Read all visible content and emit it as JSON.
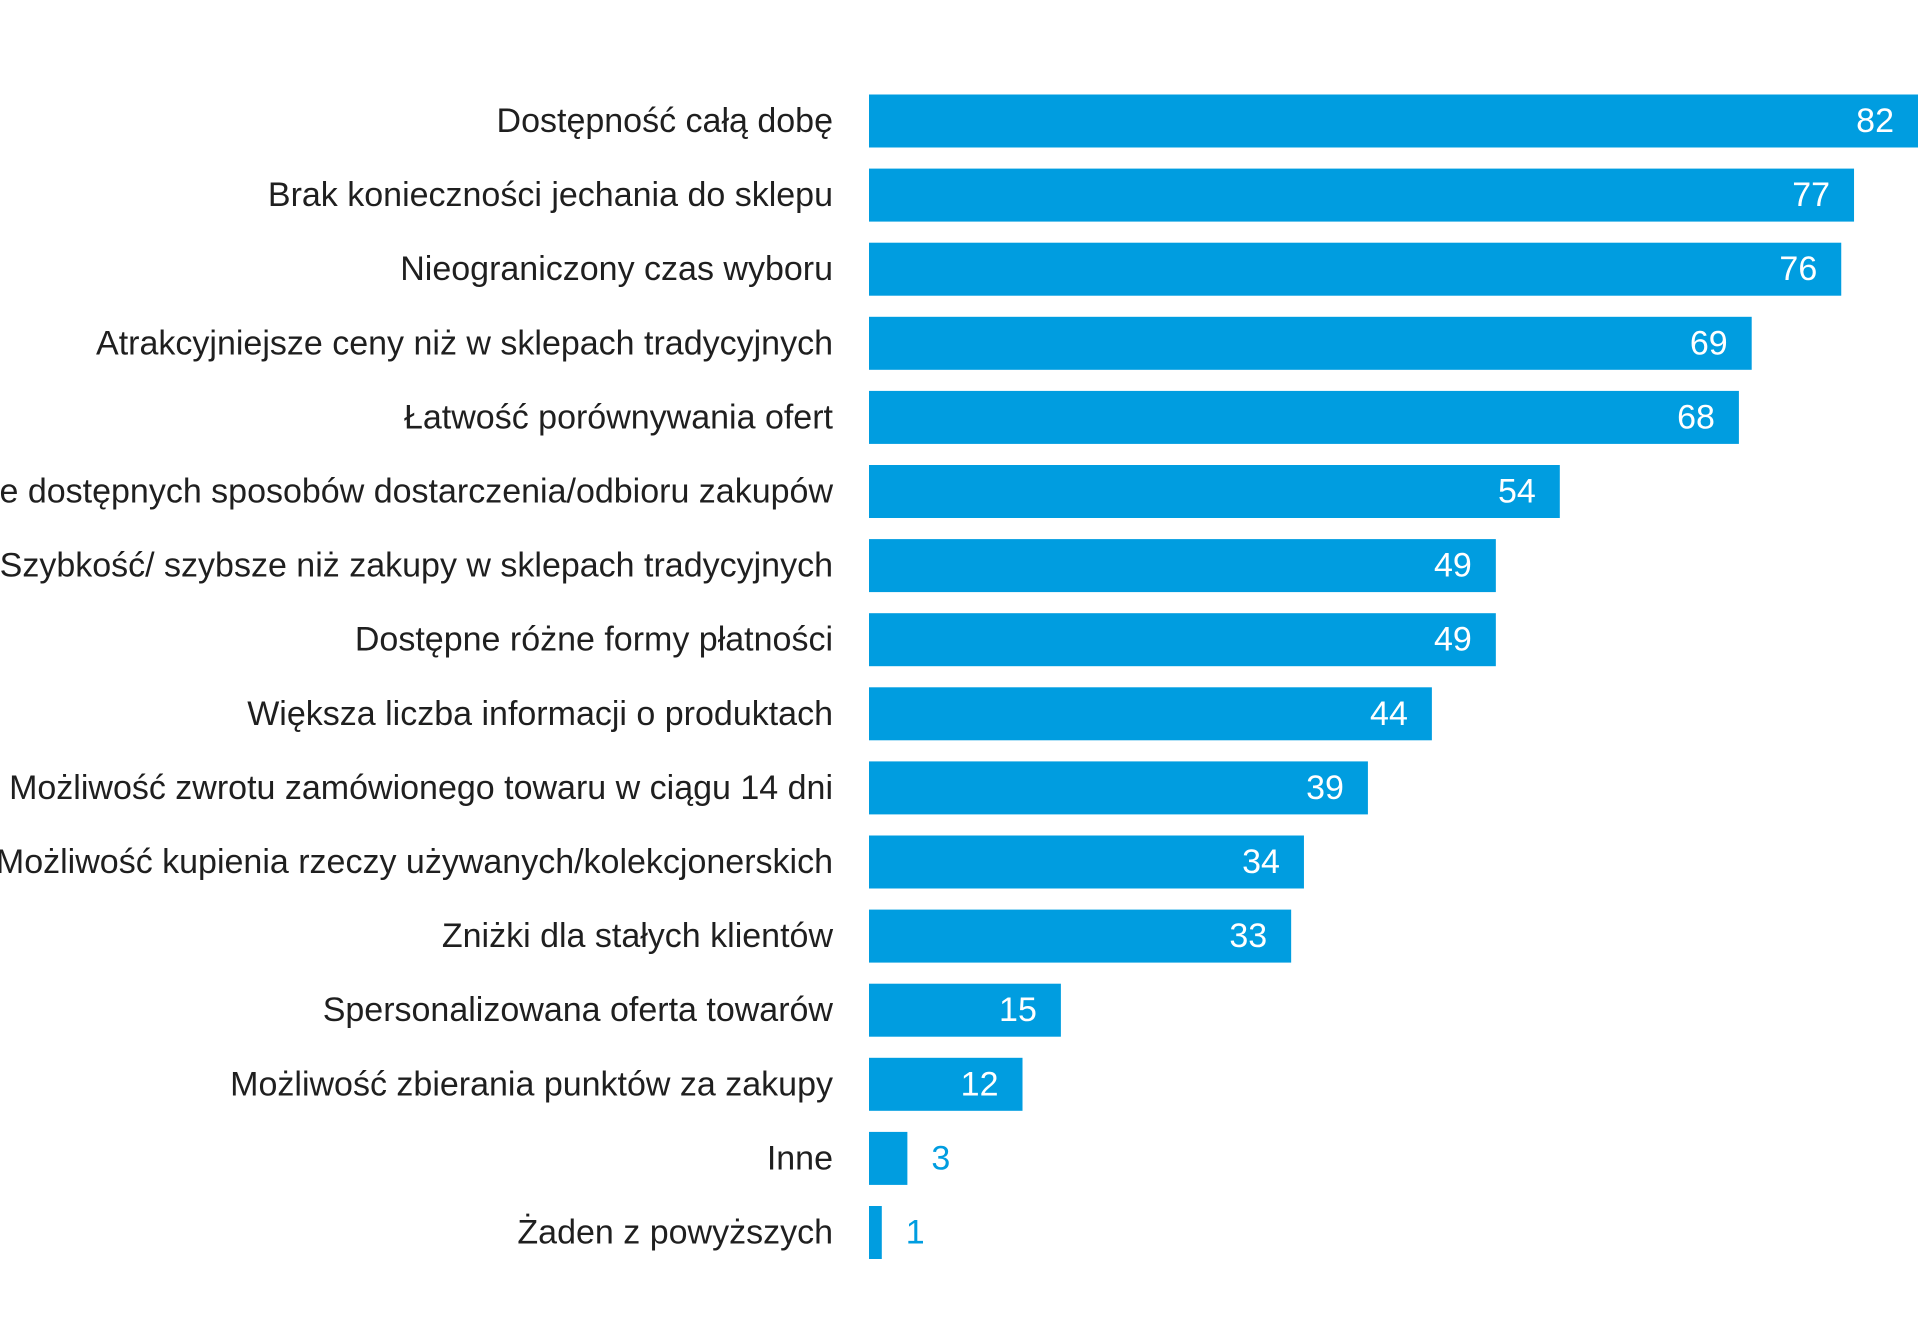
{
  "chart_data": {
    "type": "bar",
    "orientation": "horizontal",
    "categories": [
      "Dostępność całą dobę",
      "Brak konieczności jechania do sklepu",
      "Nieograniczony czas wyboru",
      "Atrakcyjniejsze ceny niż w sklepach tradycyjnych",
      "Łatwość porównywania ofert",
      "Wiele dostępnych sposobów dostarczenia/odbioru zakupów",
      "Szybkość/ szybsze niż zakupy w sklepach tradycyjnych",
      "Dostępne różne formy płatności",
      "Większa liczba informacji o produktach",
      "Możliwość zwrotu zamówionego towaru w ciągu 14 dni",
      "Możliwość kupienia rzeczy używanych/kolekcjonerskich",
      "Zniżki dla stałych klientów",
      "Spersonalizowana oferta towarów",
      "Możliwość zbierania punktów za zakupy",
      "Inne",
      "Żaden z powyższych"
    ],
    "values": [
      82,
      77,
      76,
      69,
      68,
      54,
      49,
      49,
      44,
      39,
      34,
      33,
      15,
      12,
      3,
      1
    ],
    "value_labels": [
      "82",
      "77",
      "76",
      "69",
      "68",
      "54",
      "49",
      "49",
      "44",
      "39",
      "34",
      "33",
      "15",
      "12",
      "3",
      "1"
    ],
    "title": "",
    "xlabel": "",
    "ylabel": "",
    "xlim": [
      0,
      82
    ],
    "grid": false,
    "legend": "none",
    "bar_color": "#009de0",
    "inside_label_color": "#ffffff",
    "outside_label_color": "#009de0",
    "label_color": "#1f1f1f"
  }
}
